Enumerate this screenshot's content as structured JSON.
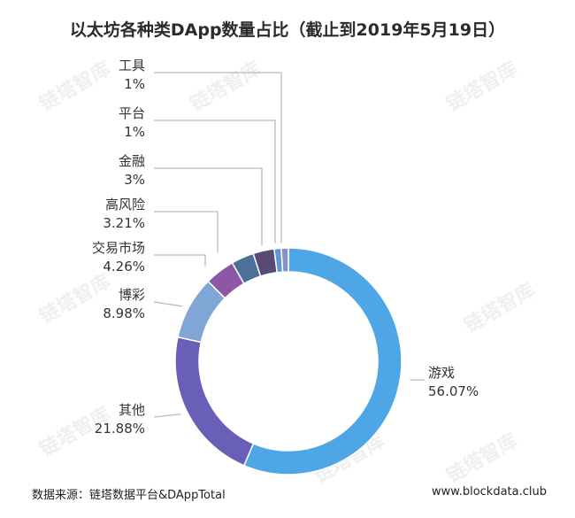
{
  "title": "以太坊各种类DApp数量占比（截止到2019年5月19日）",
  "watermark": "链塔智库",
  "footer": {
    "source": "数据来源：链塔数据平台&DAppTotal",
    "site": "www.blockdata.club"
  },
  "chart_data": {
    "type": "pie",
    "donut": true,
    "title": "以太坊各种类DApp数量占比（截止到2019年5月19日）",
    "slices": [
      {
        "name": "游戏",
        "value": 56.07,
        "label": "56.07%",
        "color": "#4ea6e6"
      },
      {
        "name": "其他",
        "value": 21.88,
        "label": "21.88%",
        "color": "#6a5fb8"
      },
      {
        "name": "博彩",
        "value": 8.98,
        "label": "8.98%",
        "color": "#7fa6d4"
      },
      {
        "name": "交易市场",
        "value": 4.26,
        "label": "4.26%",
        "color": "#8e57a6"
      },
      {
        "name": "高风险",
        "value": 3.21,
        "label": "3.21%",
        "color": "#4d6f9a"
      },
      {
        "name": "金融",
        "value": 3,
        "label": "3%",
        "color": "#574a75"
      },
      {
        "name": "平台",
        "value": 1,
        "label": "1%",
        "color": "#5c97d6"
      },
      {
        "name": "工具",
        "value": 1,
        "label": "1%",
        "color": "#8a8fc6"
      }
    ]
  }
}
